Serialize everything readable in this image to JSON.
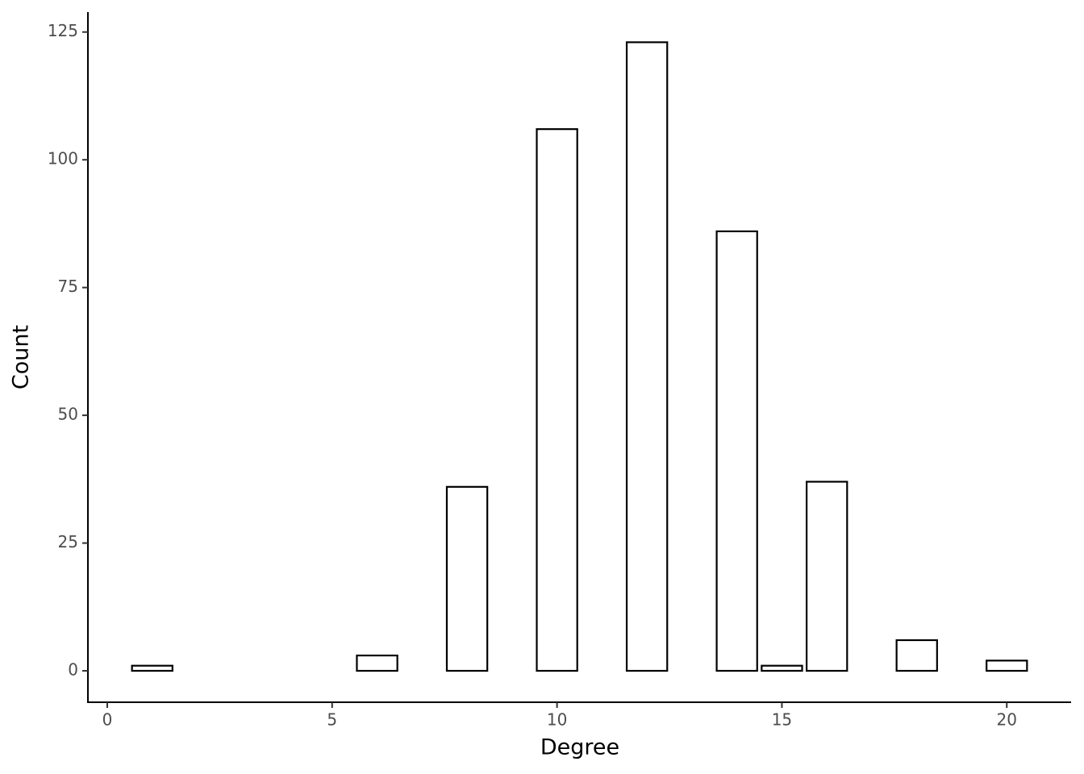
{
  "chart_data": {
    "type": "bar",
    "x": [
      1,
      6,
      8,
      10,
      12,
      14,
      15,
      16,
      18,
      20
    ],
    "values": [
      1,
      3,
      36,
      106,
      123,
      86,
      1,
      37,
      6,
      2
    ],
    "color": "#ffffff",
    "xlabel": "Degree",
    "ylabel": "Count",
    "xlim": [
      -0.43,
      21.43
    ],
    "ylim": [
      -6.15,
      128.9
    ],
    "xticks": [
      0,
      5,
      10,
      15,
      20
    ],
    "yticks": [
      0,
      25,
      50,
      75,
      100,
      125
    ],
    "grid": false
  }
}
